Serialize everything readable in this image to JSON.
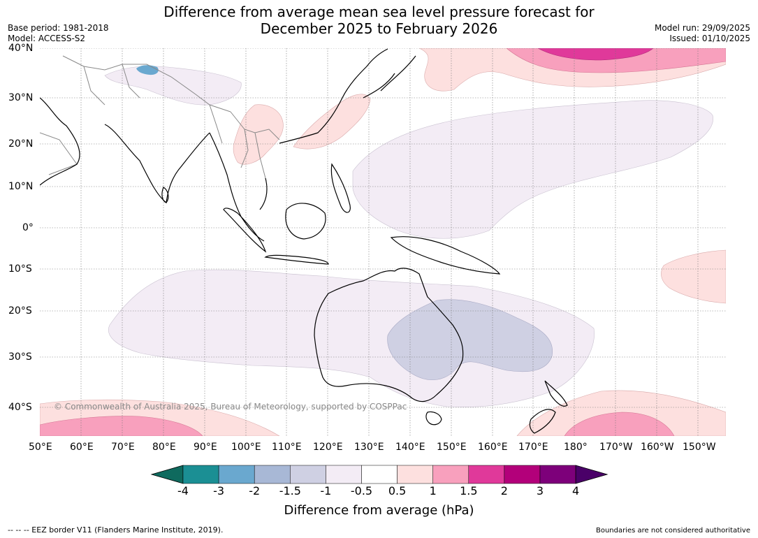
{
  "header": {
    "title_line1": "Difference from average mean sea level pressure forecast for",
    "title_line2": "December 2025 to February 2026",
    "base_period": "Base period: 1981-2018",
    "model": "Model: ACCESS-S2",
    "model_run": "Model run: 29/09/2025",
    "issued": "Issued: 01/10/2025"
  },
  "map": {
    "lat_labels": [
      "40°N",
      "30°N",
      "20°N",
      "10°N",
      "0°",
      "10°S",
      "20°S",
      "30°S",
      "40°S"
    ],
    "lon_labels": [
      "50°E",
      "60°E",
      "70°E",
      "80°E",
      "90°E",
      "100°E",
      "110°E",
      "120°E",
      "130°E",
      "140°E",
      "150°E",
      "160°E",
      "170°E",
      "180°",
      "170°W",
      "160°W",
      "150°W"
    ],
    "copyright": "© Commonwealth of Australia 2025, Bureau of Meteorology, supported by COSPPac"
  },
  "colorbar": {
    "label": "Difference from average (hPa)",
    "ticks": [
      "-4",
      "-3",
      "-2",
      "-1.5",
      "-1",
      "-0.5",
      "0.5",
      "1",
      "1.5",
      "2",
      "3",
      "4"
    ],
    "colors": [
      "#1b8f94",
      "#6aa8cf",
      "#a8b8d6",
      "#cfd0e3",
      "#f3ecf5",
      "#ffffff",
      "#fde0df",
      "#f8a0bd",
      "#e0399a",
      "#b3007a",
      "#7d007a"
    ],
    "under_color": "#0f6a5e",
    "over_color": "#4a0068"
  },
  "footer": {
    "eez_note": "--  --  -- EEZ border V11 (Flanders Marine Institute, 2019).",
    "disclaimer": "Boundaries are not considered authoritative"
  }
}
